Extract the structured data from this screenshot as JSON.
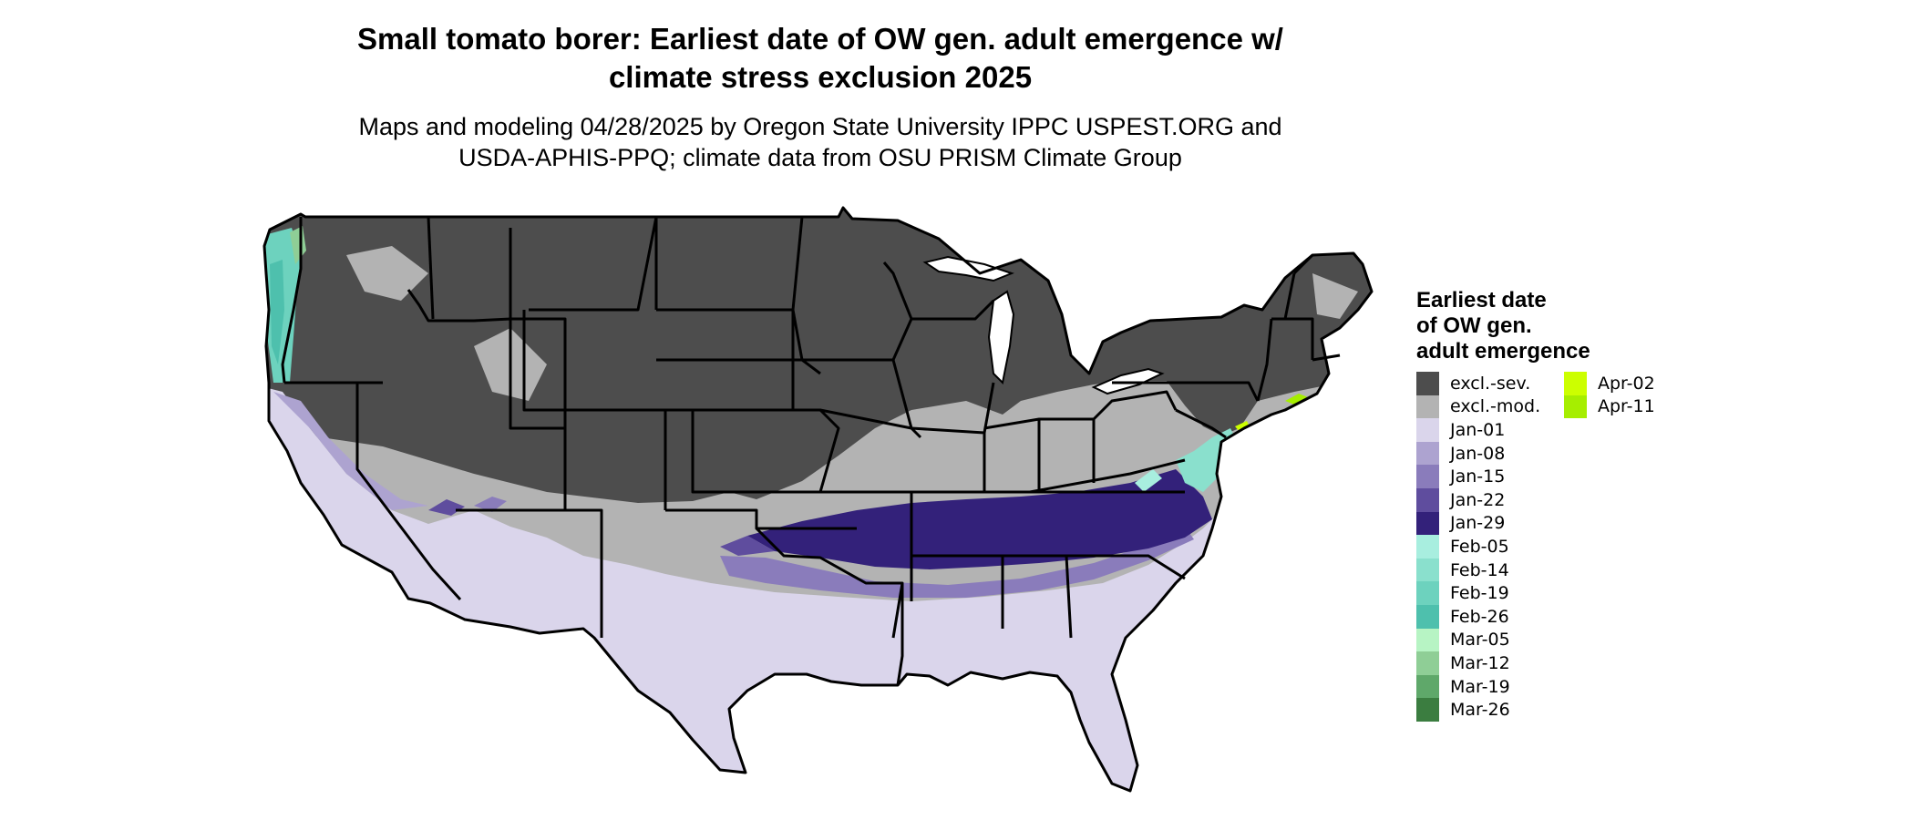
{
  "title": {
    "line1": "Small tomato borer: Earliest date of OW gen. adult emergence w/",
    "line2": "climate stress exclusion 2025"
  },
  "subtitle": {
    "line1": "Maps and modeling 04/28/2025 by Oregon State University IPPC USPEST.ORG and",
    "line2": "USDA-APHIS-PPQ; climate data from OSU PRISM Climate Group"
  },
  "legend": {
    "title_lines": [
      "Earliest date",
      "of OW gen.",
      "adult emergence"
    ],
    "col1": [
      {
        "label": "excl.-sev.",
        "color": "#4d4d4d"
      },
      {
        "label": "excl.-mod.",
        "color": "#b3b3b3"
      },
      {
        "label": "Jan-01",
        "color": "#dad5eb"
      },
      {
        "label": "Jan-08",
        "color": "#ada3d0"
      },
      {
        "label": "Jan-15",
        "color": "#8a7cbb"
      },
      {
        "label": "Jan-22",
        "color": "#5f4d9e"
      },
      {
        "label": "Jan-29",
        "color": "#33217a"
      },
      {
        "label": "Feb-05",
        "color": "#a8eedf"
      },
      {
        "label": "Feb-14",
        "color": "#8ae0cd"
      },
      {
        "label": "Feb-19",
        "color": "#6dd2be"
      },
      {
        "label": "Feb-26",
        "color": "#4ec0ad"
      },
      {
        "label": "Mar-05",
        "color": "#b7f4c4"
      },
      {
        "label": "Mar-12",
        "color": "#8fce96"
      },
      {
        "label": "Mar-19",
        "color": "#5fa86a"
      },
      {
        "label": "Mar-26",
        "color": "#3b7d40"
      }
    ],
    "col2": [
      {
        "label": "Apr-02",
        "color": "#ccff00"
      },
      {
        "label": "Apr-11",
        "color": "#a6ee00"
      }
    ]
  }
}
